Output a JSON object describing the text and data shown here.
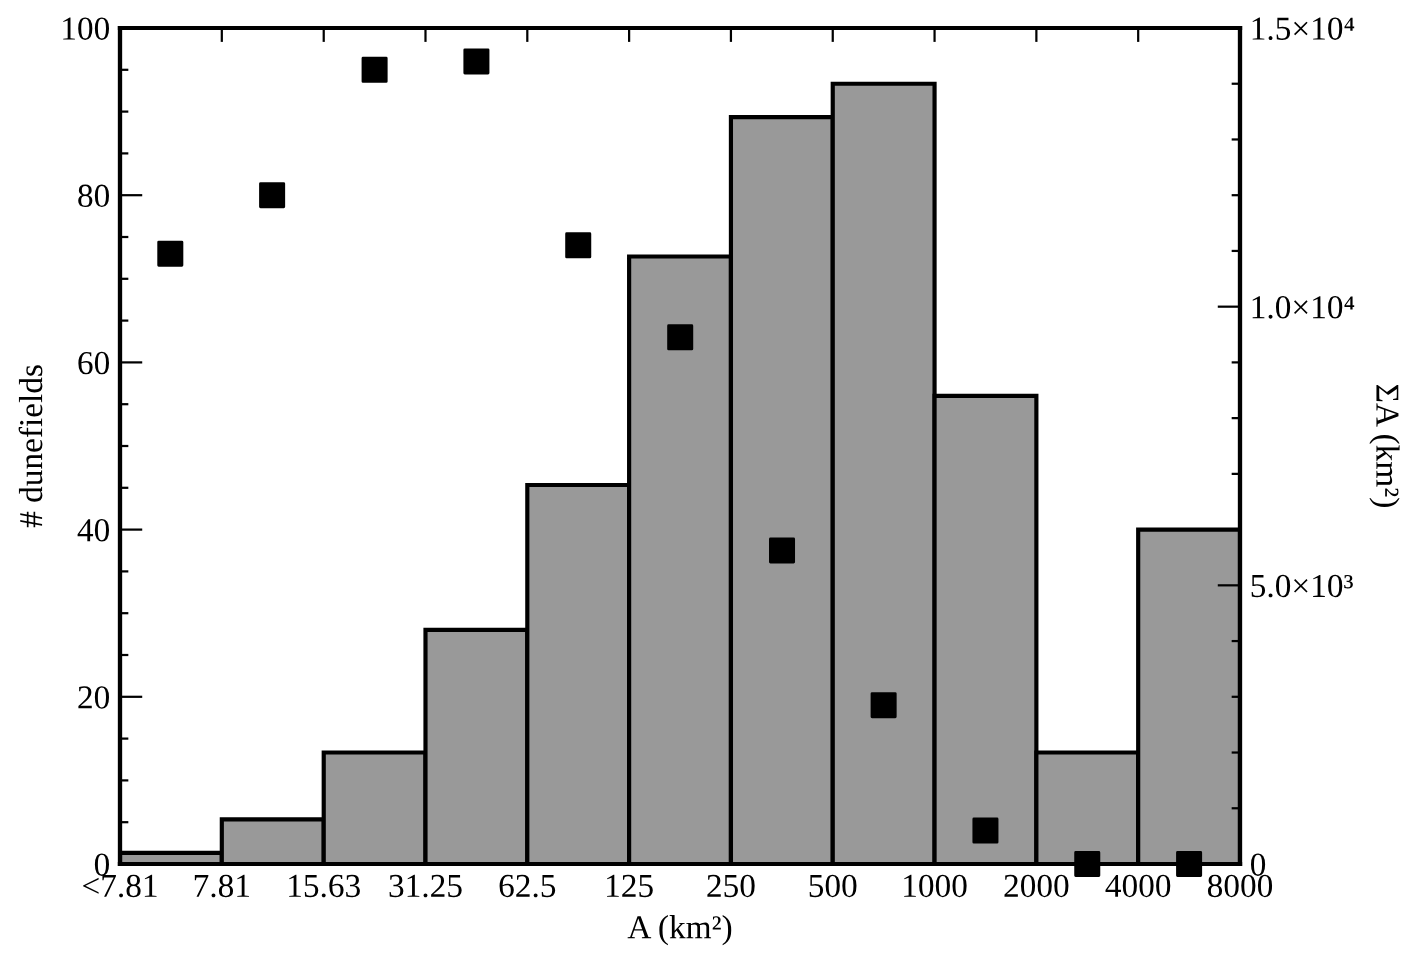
{
  "chart_data": {
    "type": "histogram",
    "xlabel": "A (km²)",
    "ylabel": "# dunefields",
    "y2label": "ΣA (km²)",
    "log": "x",
    "bins": [
      3.905,
      7.81,
      15.63,
      31.25,
      62.5,
      125,
      250,
      500,
      1000,
      2000,
      4000,
      8000
    ],
    "xlim": [
      3.905,
      8000
    ],
    "xticks": [
      {
        "value": 3.905,
        "label": "<7.81"
      },
      7.81,
      15.63,
      31.25,
      62.5,
      125,
      250,
      500,
      1000,
      2000,
      4000,
      8000
    ],
    "ylim": [
      0,
      100
    ],
    "yticks": [
      0,
      {
        "value": 5,
        "label": null
      },
      {
        "value": 10,
        "label": null
      },
      {
        "value": 15,
        "label": null
      },
      20,
      {
        "value": 25,
        "label": null
      },
      {
        "value": 30,
        "label": null
      },
      {
        "value": 35,
        "label": null
      },
      40,
      {
        "value": 45,
        "label": null
      },
      {
        "value": 50,
        "label": null
      },
      {
        "value": 55,
        "label": null
      },
      60,
      {
        "value": 65,
        "label": null
      },
      {
        "value": 70,
        "label": null
      },
      {
        "value": 75,
        "label": null
      },
      80,
      {
        "value": 85,
        "label": null
      },
      {
        "value": 90,
        "label": null
      },
      {
        "value": 95,
        "label": null
      },
      100
    ],
    "y2lim": [
      0,
      15000
    ],
    "y2ticks": [
      0,
      {
        "value": 1000,
        "label": null
      },
      {
        "value": 2000,
        "label": null
      },
      {
        "value": 3000,
        "label": null
      },
      {
        "value": 4000,
        "label": null
      },
      {
        "value": 5000,
        "label": "5.0×10³"
      },
      {
        "value": 6000,
        "label": null
      },
      {
        "value": 7000,
        "label": null
      },
      {
        "value": 8000,
        "label": null
      },
      {
        "value": 9000,
        "label": null
      },
      {
        "value": 10000,
        "label": "1.0×10⁴"
      },
      {
        "value": 11000,
        "label": null
      },
      {
        "value": 12000,
        "label": null
      },
      {
        "value": 13000,
        "label": null
      },
      {
        "value": 14000,
        "label": null
      },
      {
        "value": 15000,
        "label": "1.5×10⁴"
      }
    ],
    "grid": false,
    "legend": false,
    "series": [
      {
        "axis": "y2",
        "color": "#999999",
        "values": [
          200,
          800,
          2000,
          4200,
          6800,
          10900,
          13400,
          14000,
          8400,
          2000,
          6000
        ]
      },
      {
        "type": "scatter",
        "marker": "square",
        "color": "#000000",
        "x": [
          5.5,
          11,
          22.1,
          44.2,
          88.4,
          177,
          354,
          707,
          1414,
          2828,
          5657
        ],
        "values": [
          73,
          80,
          95,
          96,
          74,
          63,
          37.5,
          19,
          4,
          0,
          0
        ]
      }
    ]
  }
}
